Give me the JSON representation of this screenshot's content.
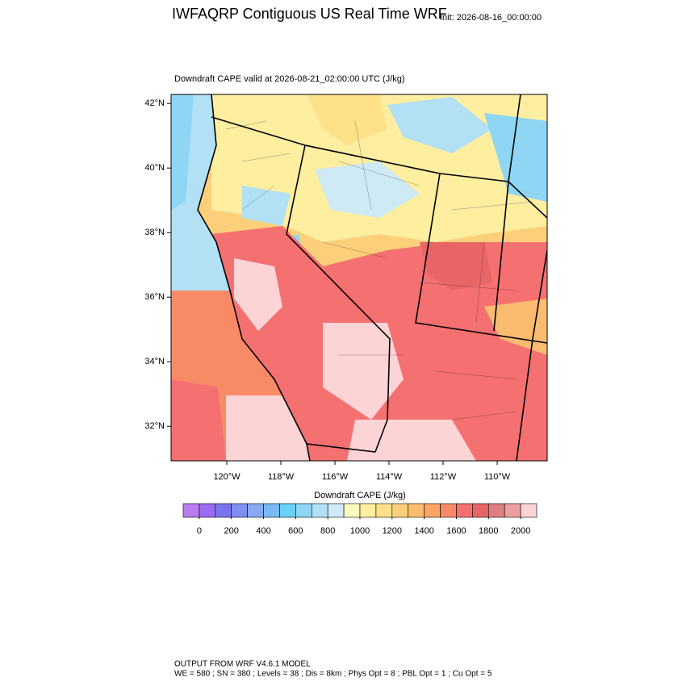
{
  "header": {
    "title": "IWFAQRP Contiguous US Real Time WRF",
    "init": "Init: 2026-08-16_00:00:00"
  },
  "map": {
    "subtitle": "Downdraft CAPE valid at 2026-08-21_02:00:00 UTC   (J/kg)",
    "latlim": [
      30.93,
      42.28
    ],
    "lonlim": [
      -122.06,
      -108.15
    ],
    "lat_ticks": [
      {
        "value": 42,
        "label": "42°N"
      },
      {
        "value": 40,
        "label": "40°N"
      },
      {
        "value": 38,
        "label": "38°N"
      },
      {
        "value": 36,
        "label": "36°N"
      },
      {
        "value": 34,
        "label": "34°N"
      },
      {
        "value": 32,
        "label": "32°N"
      }
    ],
    "lon_ticks": [
      {
        "value": -120,
        "label": "120°W"
      },
      {
        "value": -118,
        "label": "118°W"
      },
      {
        "value": -116,
        "label": "116°W"
      },
      {
        "value": -114,
        "label": "114°W"
      },
      {
        "value": -112,
        "label": "112°W"
      },
      {
        "value": -110,
        "label": "110°W"
      }
    ]
  },
  "colorbar": {
    "title": "Downdraft CAPE  (J/kg)",
    "lim": [
      -100,
      2100
    ],
    "ticks": [
      0,
      200,
      400,
      600,
      800,
      1000,
      1200,
      1400,
      1600,
      1800,
      2000
    ],
    "colors": [
      "#b87cf0",
      "#9a6cf2",
      "#7b74f0",
      "#7f8ff0",
      "#8aa9f0",
      "#79b9f5",
      "#6ad0f8",
      "#8fd6f5",
      "#b2e0f5",
      "#cdeaf5",
      "#fdfac0",
      "#fdeea0",
      "#fde28a",
      "#fcd07a",
      "#fcbc70",
      "#fba464",
      "#f98a66",
      "#f57070",
      "#e86566",
      "#e07f80",
      "#ec9ea0",
      "#fcd4d6"
    ]
  },
  "footer": {
    "line1": "OUTPUT FROM WRF V4.6.1 MODEL",
    "line2": "WE = 580 ; SN = 380 ; Levels = 38 ; Dis = 8km ; Phys Opt = 8 ; PBL Opt = 1 ; Cu Opt = 5"
  }
}
